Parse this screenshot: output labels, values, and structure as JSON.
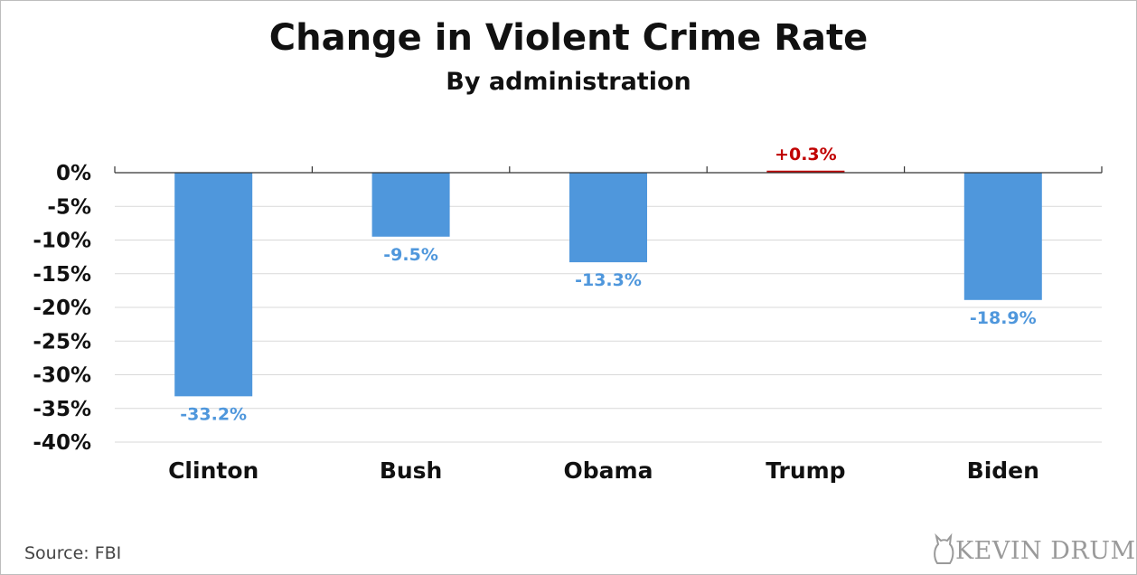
{
  "chart_data": {
    "type": "bar",
    "title": "Change in Violent Crime Rate",
    "subtitle": "By administration",
    "categories": [
      "Clinton",
      "Bush",
      "Obama",
      "Trump",
      "Biden"
    ],
    "values": [
      -33.2,
      -9.5,
      -13.3,
      0.3,
      -18.9
    ],
    "data_labels": [
      "-33.2%",
      "-9.5%",
      "-13.3%",
      "+0.3%",
      "-18.9%"
    ],
    "yticks": [
      0,
      -5,
      -10,
      -15,
      -20,
      -25,
      -30,
      -35,
      -40
    ],
    "ytick_labels": [
      "0%",
      "-5%",
      "-10%",
      "-15%",
      "-20%",
      "-25%",
      "-30%",
      "-35%",
      "-40%"
    ],
    "ylim": [
      -40,
      0
    ],
    "grid": true,
    "colors": {
      "negative": "#4f97dc",
      "positive": "#c00000",
      "grid": "#d9d9d9",
      "axis": "#333333"
    }
  },
  "footer": {
    "source": "Source:  FBI",
    "logo_text": "KEVIN DRUM"
  }
}
